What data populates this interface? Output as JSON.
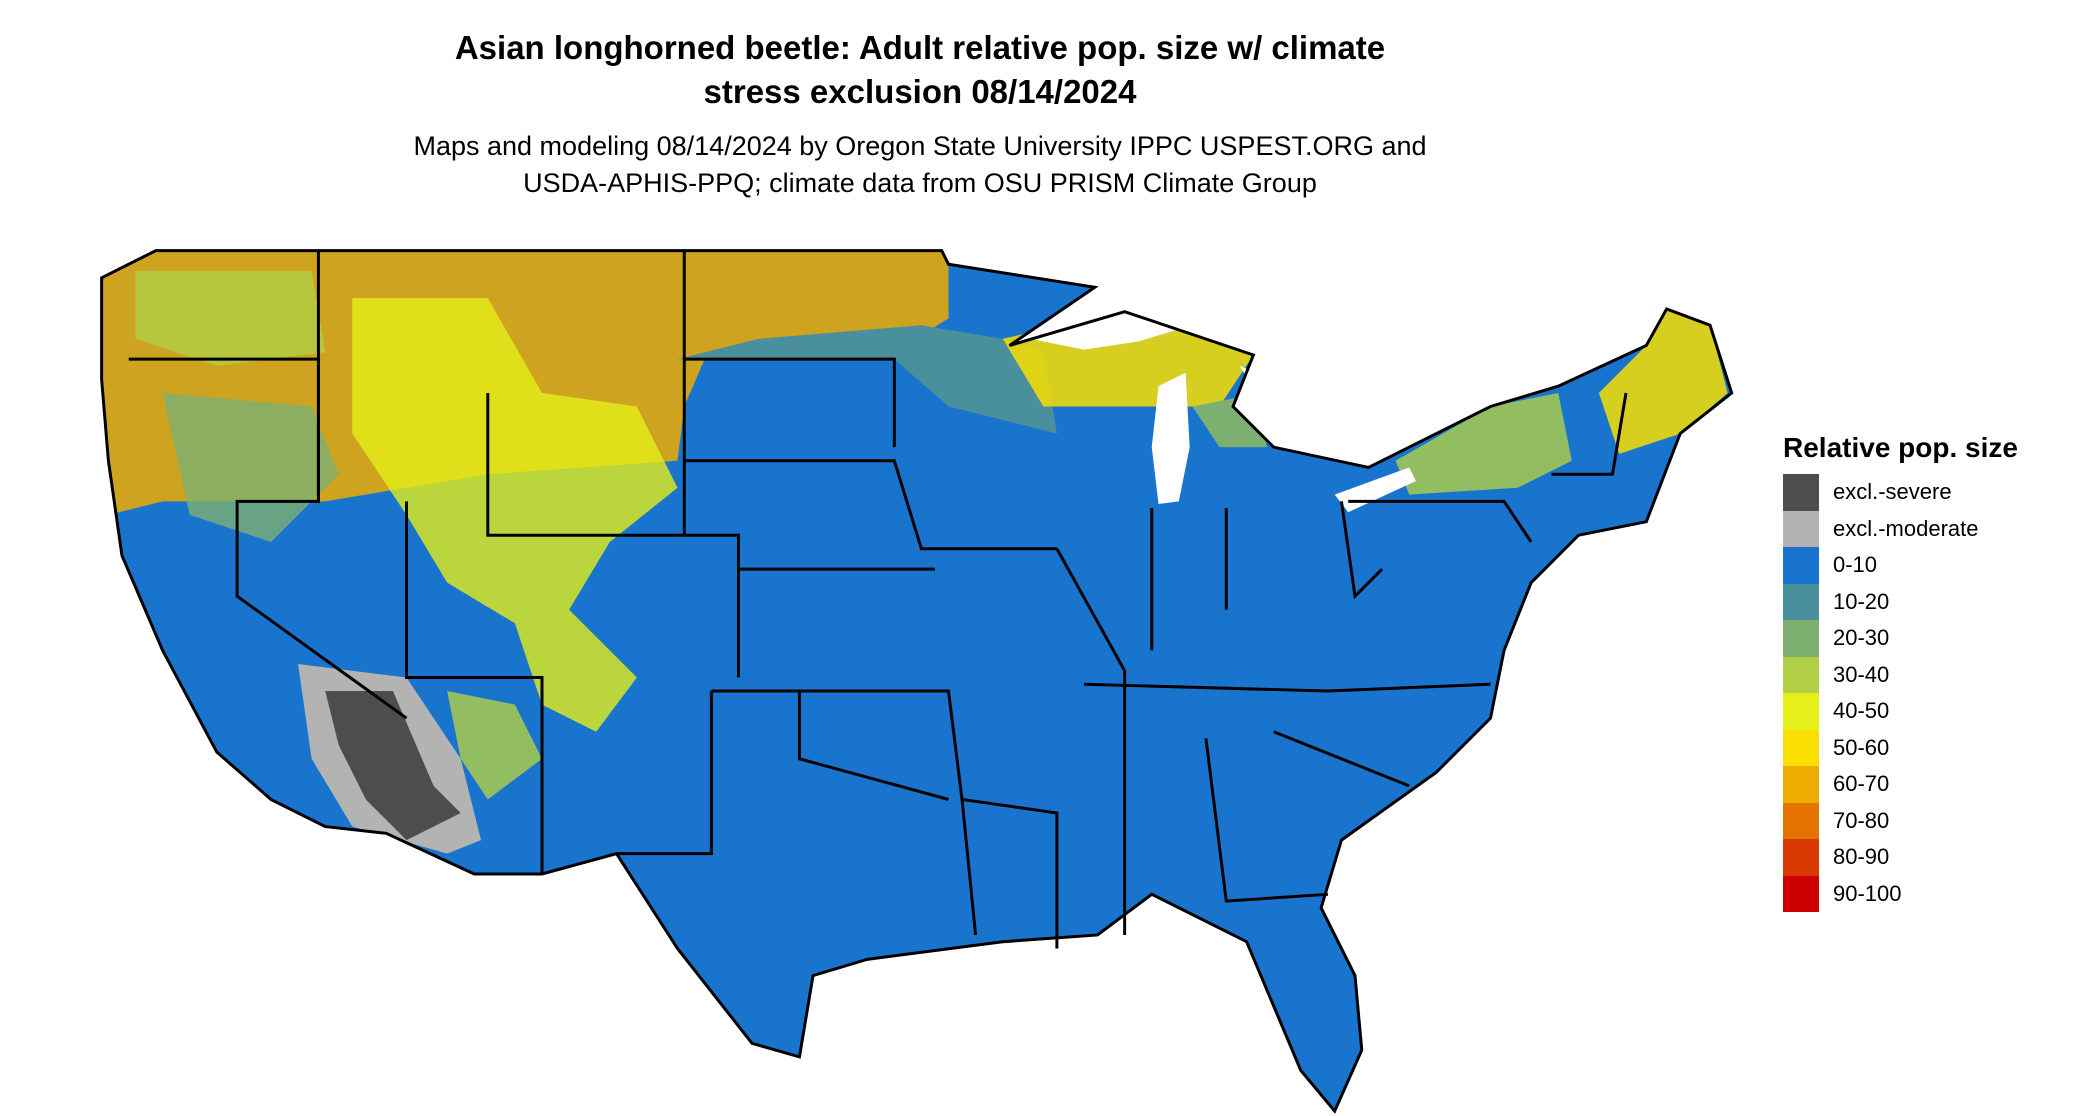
{
  "header": {
    "title_line1": "Asian longhorned beetle: Adult relative pop. size w/ climate",
    "title_line2": "stress exclusion 08/14/2024",
    "subtitle_line1": "Maps and modeling 08/14/2024 by Oregon State University IPPC USPEST.ORG and",
    "subtitle_line2": "USDA-APHIS-PPQ; climate data from OSU PRISM Climate Group"
  },
  "chart_data": {
    "type": "heatmap",
    "title": "Asian longhorned beetle: Adult relative pop. size w/ climate stress exclusion 08/14/2024",
    "region": "Contiguous United States",
    "legend": {
      "title": "Relative pop. size",
      "placement": "right",
      "items": [
        {
          "label": "excl.-severe",
          "color": "#4d4d4d"
        },
        {
          "label": "excl.-moderate",
          "color": "#b3b3b3"
        },
        {
          "label": "0-10",
          "color": "#1874cd"
        },
        {
          "label": "10-20",
          "color": "#4a8f9c"
        },
        {
          "label": "20-30",
          "color": "#7db070"
        },
        {
          "label": "30-40",
          "color": "#b2cf45"
        },
        {
          "label": "40-50",
          "color": "#e5ef19"
        },
        {
          "label": "50-60",
          "color": "#f8df00"
        },
        {
          "label": "60-70",
          "color": "#eeab00"
        },
        {
          "label": "70-80",
          "color": "#e57300"
        },
        {
          "label": "80-90",
          "color": "#d93800"
        },
        {
          "label": "90-100",
          "color": "#cc0000"
        }
      ]
    }
  }
}
